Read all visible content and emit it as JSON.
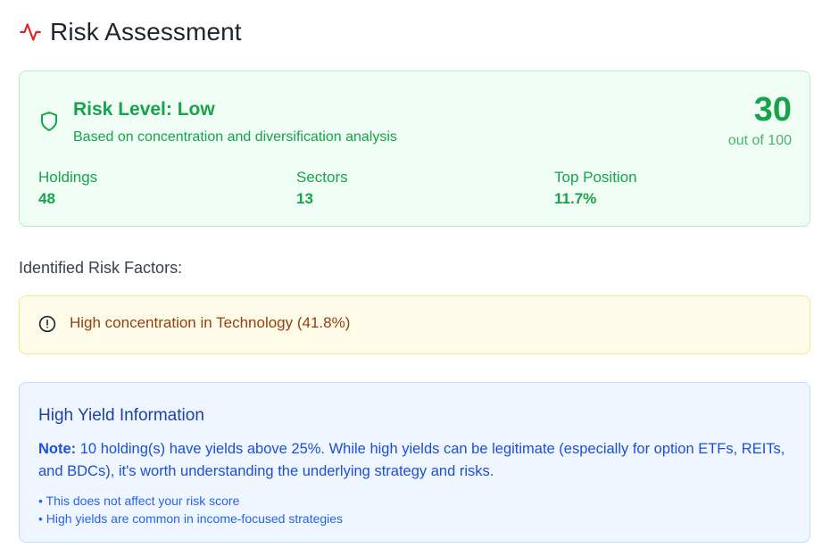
{
  "header": {
    "title": "Risk Assessment",
    "icon": "activity-pulse-icon",
    "icon_color": "#dc2626"
  },
  "risk": {
    "level": "Risk Level: Low",
    "basis": "Based on concentration and diversification analysis",
    "score": "30",
    "score_suffix": "out of 100",
    "accent_color": "#16a34a",
    "stats": [
      {
        "label": "Holdings",
        "value": "48"
      },
      {
        "label": "Sectors",
        "value": "13"
      },
      {
        "label": "Top Position",
        "value": "11.7%"
      }
    ]
  },
  "factors": {
    "heading": "Identified Risk Factors:",
    "items": [
      {
        "text": "High concentration in Technology (41.8%)",
        "icon": "alert-circle-icon"
      }
    ]
  },
  "high_yield": {
    "title": "High Yield Information",
    "note_label": "Note:",
    "note_text": " 10 holding(s) have yields above 25%. While high yields can be legitimate (especially for option ETFs, REITs, and BDCs), it's worth understanding the underlying strategy and risks.",
    "bullets": [
      "• This does not affect your risk score",
      "• High yields are common in income-focused strategies"
    ]
  }
}
